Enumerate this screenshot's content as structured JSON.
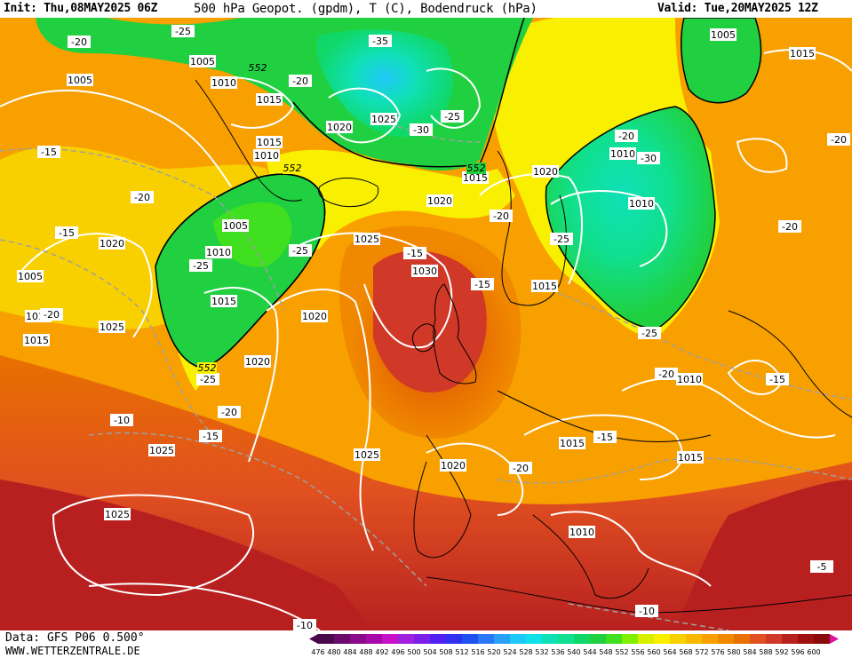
{
  "header": {
    "init": "Init: Thu,08MAY2025 06Z",
    "title": "500 hPa Geopot. (gpdm), T (C), Bodendruck (hPa)",
    "valid": "Valid: Tue,20MAY2025 12Z"
  },
  "footer": {
    "data_source": "Data: GFS P06 0.500°",
    "website": "WWW.WETTERZENTRALE.DE"
  },
  "map": {
    "pressure_labels": [
      "1005",
      "1010",
      "1015",
      "1005",
      "1010",
      "1015",
      "1020",
      "1025",
      "1020",
      "1005",
      "1010",
      "1015",
      "1020",
      "1025",
      "1030",
      "1025",
      "1020",
      "1015",
      "1010",
      "1020",
      "1010",
      "1015",
      "1010",
      "1005",
      "1015",
      "1025",
      "1025",
      "1025",
      "1020",
      "1015",
      "1010",
      "1015",
      "1010",
      "1015",
      "1020",
      "1005"
    ],
    "temperature_labels": [
      "-20",
      "-25",
      "-20",
      "-35",
      "-30",
      "-25",
      "-15",
      "-20",
      "-15",
      "-20",
      "-25",
      "-25",
      "-15",
      "-15",
      "-20",
      "-20",
      "-15",
      "-25",
      "-20",
      "-30",
      "-20",
      "-25",
      "-15",
      "-20",
      "-15",
      "-10",
      "-10",
      "-20",
      "-5",
      "-10",
      "-25",
      "-20"
    ],
    "geopotential_labels": [
      "552",
      "552",
      "552",
      "552"
    ]
  },
  "legend": {
    "ticks": [
      "476",
      "480",
      "484",
      "488",
      "492",
      "496",
      "500",
      "504",
      "508",
      "512",
      "516",
      "520",
      "524",
      "528",
      "532",
      "536",
      "540",
      "544",
      "548",
      "552",
      "556",
      "560",
      "564",
      "568",
      "572",
      "576",
      "580",
      "584",
      "588",
      "592",
      "596",
      "600"
    ],
    "colors": [
      "#4a0a4a",
      "#6a0a6a",
      "#8a0a8a",
      "#a80aa8",
      "#c810c8",
      "#a020e0",
      "#7a1ee8",
      "#5020f0",
      "#3030f0",
      "#2050f0",
      "#2878f8",
      "#28a0f8",
      "#20c8f8",
      "#10e0e8",
      "#10e0b8",
      "#10e090",
      "#10d868",
      "#20d040",
      "#40e020",
      "#80f000",
      "#d8f000",
      "#f8f000",
      "#f8d000",
      "#f8b800",
      "#f8a000",
      "#f08800",
      "#e87000",
      "#e05020",
      "#d03828",
      "#b82020",
      "#a01010",
      "#8a0a0a"
    ]
  }
}
